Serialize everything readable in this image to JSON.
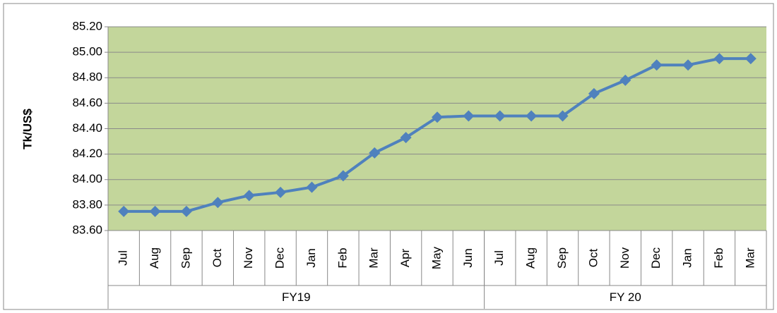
{
  "chart_data": {
    "type": "line",
    "y_label": "Tk/US$",
    "categories": [
      "Jul",
      "Aug",
      "Sep",
      "Oct",
      "Nov",
      "Dec",
      "Jan",
      "Feb",
      "Mar",
      "Apr",
      "May",
      "Jun",
      "Jul",
      "Aug",
      "Sep",
      "Oct",
      "Nov",
      "Dec",
      "Jan",
      "Feb",
      "Mar"
    ],
    "groups": [
      {
        "label": "FY19",
        "size": 12
      },
      {
        "label": "FY 20",
        "size": 9
      }
    ],
    "values": [
      83.75,
      83.75,
      83.75,
      83.82,
      83.875,
      83.9,
      83.94,
      84.03,
      84.21,
      84.33,
      84.49,
      84.5,
      84.5,
      84.5,
      84.5,
      84.675,
      84.78,
      84.9,
      84.9,
      84.95,
      84.95
    ],
    "color": "#4f81bd",
    "background": "#c3d69b",
    "ylim": [
      83.6,
      85.2
    ],
    "yticks": [
      {
        "value": 83.6,
        "label": "83.60"
      },
      {
        "value": 83.8,
        "label": "83.80"
      },
      {
        "value": 84.0,
        "label": "84.00"
      },
      {
        "value": 84.2,
        "label": "84.20"
      },
      {
        "value": 84.4,
        "label": "84.40"
      },
      {
        "value": 84.6,
        "label": "84.60"
      },
      {
        "value": 84.8,
        "label": "84.80"
      },
      {
        "value": 85.0,
        "label": "85.00"
      },
      {
        "value": 85.2,
        "label": "85.20"
      }
    ],
    "grid": true
  }
}
